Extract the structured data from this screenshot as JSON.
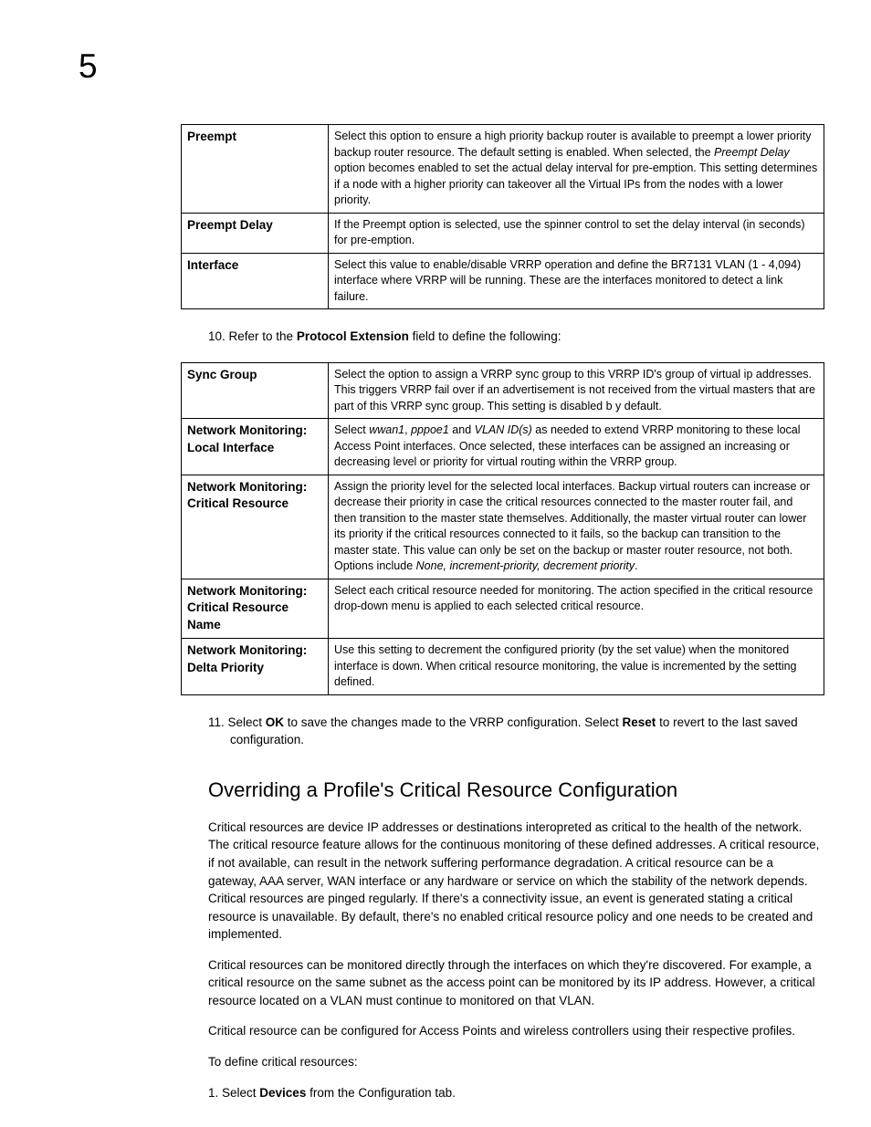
{
  "chapter_number": "5",
  "table1": {
    "rows": [
      {
        "label": "Preempt",
        "desc_parts": [
          {
            "text": "Select this option to ensure a high priority backup router is available to preempt a lower priority backup router resource. The default setting is enabled. When selected, the "
          },
          {
            "text": "Preempt Delay",
            "italic": true
          },
          {
            "text": " option becomes enabled to set the actual delay interval for pre-emption. This setting determines if a node with a higher priority can takeover all the Virtual IPs from the nodes with a lower priority."
          }
        ]
      },
      {
        "label": "Preempt Delay",
        "desc_parts": [
          {
            "text": "If the Preempt option is selected, use the spinner control to set the delay interval (in seconds) for pre-emption."
          }
        ]
      },
      {
        "label": "Interface",
        "desc_parts": [
          {
            "text": "Select this value to enable/disable VRRP operation and define the BR7131 VLAN (1 - 4,094) interface where VRRP will be running. These are the interfaces monitored to detect a link failure."
          }
        ]
      }
    ]
  },
  "step10_parts": [
    {
      "text": "10. Refer to the "
    },
    {
      "text": "Protocol Extension",
      "bold": true
    },
    {
      "text": " field to define the following:"
    }
  ],
  "table2": {
    "rows": [
      {
        "label": "Sync Group",
        "desc_parts": [
          {
            "text": "Select the option to assign a VRRP sync group to this VRRP ID's group of virtual ip addresses. This triggers VRRP fail over if an advertisement is not received from the virtual masters that are part of this VRRP sync group. This setting is disabled b y default."
          }
        ]
      },
      {
        "label": "Network Monitoring: Local Interface",
        "desc_parts": [
          {
            "text": "Select "
          },
          {
            "text": "wwan1",
            "italic": true
          },
          {
            "text": ", "
          },
          {
            "text": "pppoe1",
            "italic": true
          },
          {
            "text": " and "
          },
          {
            "text": "VLAN ID(s)",
            "italic": true
          },
          {
            "text": " as needed to extend VRRP monitoring to these local Access Point interfaces. Once selected, these interfaces can be assigned an increasing or decreasing level or priority for virtual routing within the VRRP group."
          }
        ]
      },
      {
        "label": "Network Monitoring: Critical Resource",
        "desc_parts": [
          {
            "text": "Assign the priority level for the selected local interfaces. Backup virtual routers can increase or decrease their priority in case the critical resources connected to the master router fail, and then transition to the master state themselves. Additionally, the master virtual router can lower its priority if the critical resources connected to it fails, so the backup can transition to the master state. This value can only be set on the backup or master router resource, not both. Options include "
          },
          {
            "text": "None, increment-priority, decrement priority",
            "italic": true
          },
          {
            "text": "."
          }
        ]
      },
      {
        "label": "Network Monitoring: Critical Resource Name",
        "desc_parts": [
          {
            "text": "Select each critical resource needed for monitoring. The action specified in the critical resource drop-down menu is applied to each selected critical resource."
          }
        ]
      },
      {
        "label": "Network Monitoring: Delta Priority",
        "desc_parts": [
          {
            "text": "Use this setting to decrement the configured priority (by the set value) when the monitored interface is down. When critical resource monitoring, the value is incremented by the setting defined."
          }
        ]
      }
    ]
  },
  "step11_parts": [
    {
      "text": "11. Select "
    },
    {
      "text": "OK",
      "bold": true
    },
    {
      "text": " to save the changes made to the VRRP configuration. Select "
    },
    {
      "text": "Reset",
      "bold": true
    },
    {
      "text": " to revert to the last saved configuration."
    }
  ],
  "section_heading": "Overriding a Profile's Critical Resource Configuration",
  "para1": "Critical resources are device IP addresses or destinations interopreted as critical to the health of the network. The critical resource feature allows for the continuous monitoring of these defined addresses. A critical resource, if not available, can result in the network suffering performance degradation. A critical resource can be a gateway, AAA server, WAN interface or any hardware or service on which the stability of the network depends. Critical resources are pinged regularly. If there's a connectivity issue, an event is generated stating a critical resource is unavailable. By default, there's no enabled critical resource policy and one needs to be created and implemented.",
  "para2": "Critical resources can be monitored directly through the interfaces on which they're discovered. For example, a critical resource on the same subnet as the access point can be monitored by its IP address. However, a critical resource located on a VLAN must continue to monitored on that VLAN.",
  "para3": "Critical resource can be configured for Access Points and wireless controllers using their respective profiles.",
  "para4": "To define critical resources:",
  "step1_parts": [
    {
      "text": "1.   Select "
    },
    {
      "text": "Devices",
      "bold": true
    },
    {
      "text": " from the Configuration tab."
    }
  ]
}
